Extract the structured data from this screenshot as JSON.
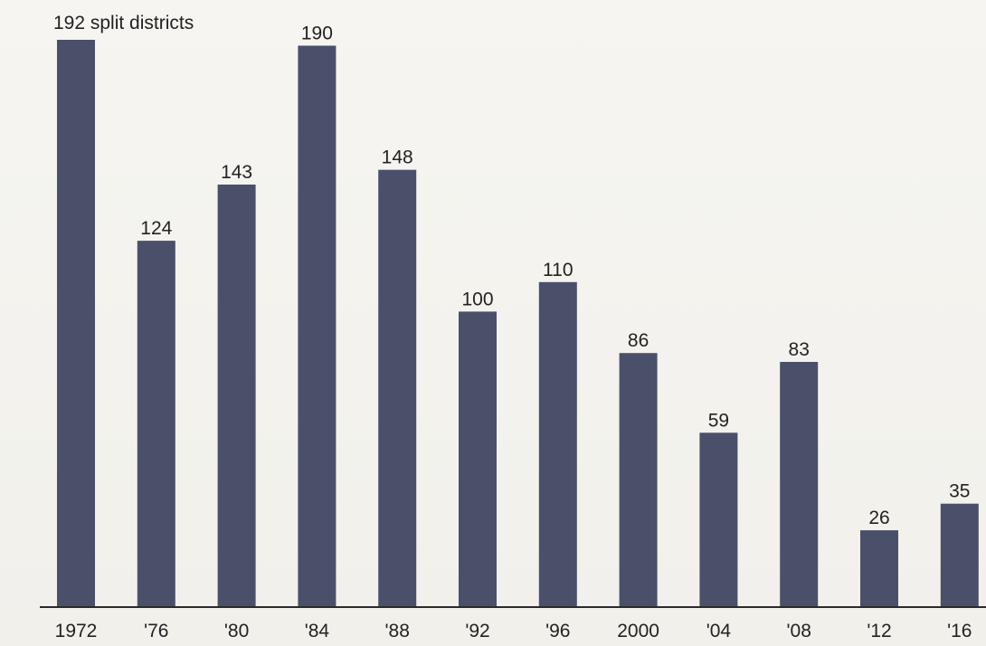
{
  "chart_data": {
    "type": "bar",
    "categories": [
      "1972",
      "'76",
      "'80",
      "'84",
      "'88",
      "'92",
      "'96",
      "2000",
      "'04",
      "'08",
      "'12",
      "'16"
    ],
    "values": [
      192,
      124,
      143,
      190,
      148,
      100,
      110,
      86,
      59,
      83,
      26,
      35
    ],
    "data_labels": [
      "192 split districts",
      "124",
      "143",
      "190",
      "148",
      "100",
      "110",
      "86",
      "59",
      "83",
      "26",
      "35"
    ],
    "title": "",
    "xlabel": "",
    "ylabel": "",
    "ylim": [
      0,
      192
    ],
    "grid": false,
    "legend": "none",
    "bar_color": "#4a506a",
    "axis_color": "#2a2a2a"
  }
}
